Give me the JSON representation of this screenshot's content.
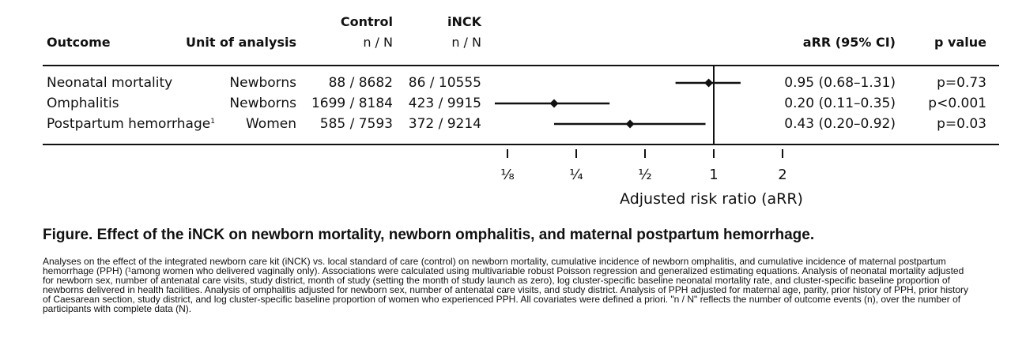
{
  "header": {
    "outcome": "Outcome",
    "unit": "Unit of analysis",
    "control_group": "Control",
    "control_sub": "n / N",
    "inck_group": "iNCK",
    "inck_sub": "n / N",
    "arr": "aRR (95% CI)",
    "pvalue": "p value"
  },
  "rows": [
    {
      "outcome": "Neonatal mortality",
      "footnote": "",
      "unit": "Newborns",
      "control": "88 / 8682",
      "inck": "86 / 10555",
      "arr_text": "0.95 (0.68–1.31)",
      "p": "p=0.73"
    },
    {
      "outcome": "Omphalitis",
      "footnote": "",
      "unit": "Newborns",
      "control": "1699 / 8184",
      "inck": "423 / 9915",
      "arr_text": "0.20 (0.11–0.35)",
      "p": "p<0.001"
    },
    {
      "outcome": "Postpartum hemorrhage",
      "footnote": "1",
      "unit": "Women",
      "control": "585 / 7593",
      "inck": "372 / 9214",
      "arr_text": "0.43 (0.20–0.92)",
      "p": "p=0.03"
    }
  ],
  "chart_data": {
    "type": "forest",
    "scale": "log2",
    "xlabel": "Adjusted risk ratio (aRR)",
    "ticks": [
      {
        "value": 0.125,
        "label": "⅛"
      },
      {
        "value": 0.25,
        "label": "¼"
      },
      {
        "value": 0.5,
        "label": "½"
      },
      {
        "value": 1,
        "label": "1"
      },
      {
        "value": 2,
        "label": "2"
      }
    ],
    "reference_line": 1,
    "series": [
      {
        "name": "Neonatal mortality",
        "estimate": 0.95,
        "lower": 0.68,
        "upper": 1.31
      },
      {
        "name": "Omphalitis",
        "estimate": 0.2,
        "lower": 0.11,
        "upper": 0.35
      },
      {
        "name": "Postpartum hemorrhage",
        "estimate": 0.43,
        "lower": 0.2,
        "upper": 0.92
      }
    ]
  },
  "caption": {
    "title": "Figure. Effect of the iNCK on newborn mortality, newborn omphalitis, and maternal postpartum hemorrhage.",
    "body": "Analyses on the effect of the integrated newborn care kit (iNCK) vs. local standard of care (control) on newborn mortality, cumulative incidence of newborn omphalitis, and cumulative incidence of maternal postpartum hemorrhage (PPH) (¹among women who delivered vaginally only). Associations were calculated using multivariable robust Poisson regression and generalized estimating equations. Analysis of neonatal mortality adjusted for newborn sex, number of antenatal care visits, study district, month of study (setting the month of study launch as zero), log cluster-specific baseline neonatal mortality rate, and cluster-specific baseline proportion of newborns delivered in health facilities. Analysis of omphalitis adjusted for newborn sex, number of antenatal care visits, and study district. Analysis of PPH adjusted for maternal age, parity, prior history of PPH, prior history of Caesarean section, study district, and log cluster-specific baseline proportion of women who experienced PPH. All covariates were defined a priori. \"n / N\" reflects the number of outcome events (n), over the number of participants with complete data (N)."
  }
}
